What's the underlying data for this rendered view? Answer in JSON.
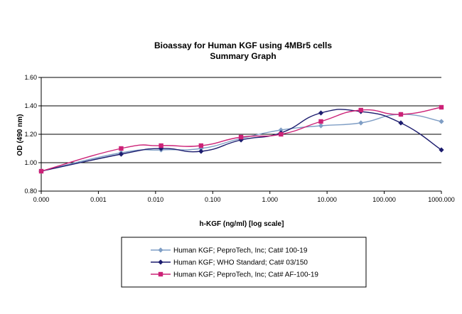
{
  "chart_data": {
    "type": "line",
    "title": "Bioassay for Human KGF using 4MBr5 cells",
    "subtitle": "Summary Graph",
    "xlabel": "h-KGF (ng/ml) [log scale]",
    "ylabel": "OD (490 nm)",
    "x_scale": "log",
    "x_ticks": [
      "0.000",
      "0.001",
      "0.010",
      "0.100",
      "1.000",
      "10.000",
      "100.000",
      "1000.000"
    ],
    "y_ticks": [
      "0.80",
      "1.00",
      "1.20",
      "1.40",
      "1.60"
    ],
    "ylim": [
      0.8,
      1.6
    ],
    "grid": "horizontal",
    "legend_position": "bottom",
    "series": [
      {
        "name": "Human KGF; PeproTech, Inc; Cat# 100-19",
        "color": "#7f9ec5",
        "marker": "diamond",
        "x": [
          0,
          0.0025,
          0.0125,
          0.0625,
          0.3125,
          1.5625,
          7.8125,
          39.0625,
          195.3125,
          1000
        ],
        "values": [
          0.94,
          1.07,
          1.09,
          1.1,
          1.17,
          1.23,
          1.26,
          1.28,
          1.34,
          1.29
        ]
      },
      {
        "name": "Human KGF; WHO Standard; Cat# 03/150",
        "color": "#1c1c6e",
        "marker": "diamond",
        "x": [
          0,
          0.0025,
          0.0125,
          0.0625,
          0.3125,
          1.5625,
          7.8125,
          39.0625,
          195.3125,
          1000
        ],
        "values": [
          0.94,
          1.06,
          1.1,
          1.08,
          1.16,
          1.21,
          1.35,
          1.36,
          1.28,
          1.09
        ]
      },
      {
        "name": "Human KGF; PeproTech, Inc; Cat# AF-100-19",
        "color": "#cc2277",
        "marker": "square",
        "x": [
          0,
          0.0025,
          0.0125,
          0.0625,
          0.3125,
          1.5625,
          7.8125,
          39.0625,
          195.3125,
          1000
        ],
        "values": [
          0.94,
          1.1,
          1.12,
          1.12,
          1.18,
          1.2,
          1.29,
          1.37,
          1.34,
          1.39
        ]
      }
    ]
  }
}
